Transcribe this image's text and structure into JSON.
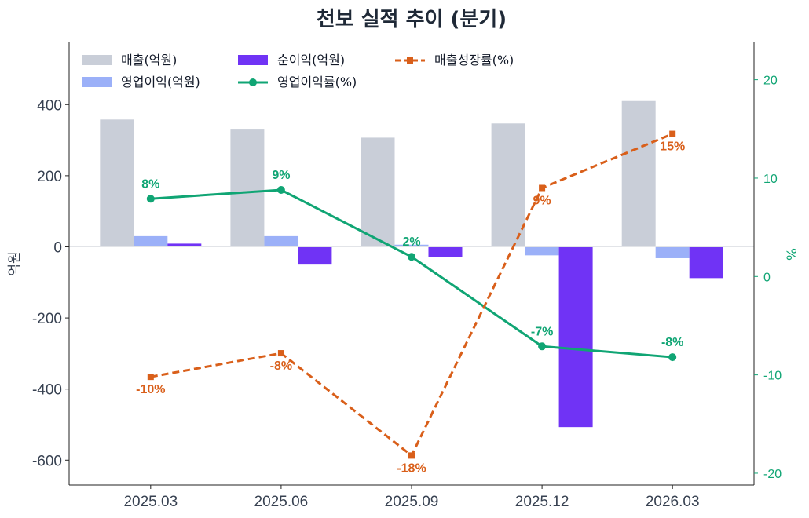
{
  "chart_data": {
    "type": "bar",
    "title": "천보 실적 추이 (분기)",
    "categories": [
      "2025.03",
      "2025.06",
      "2025.09",
      "2025.12",
      "2026.03"
    ],
    "ylabel": "억원",
    "ylabel_right": "%",
    "ylim": [
      -670,
      575
    ],
    "ylim_right": [
      -21.2,
      23.8
    ],
    "yticks": [
      -600,
      -400,
      -200,
      0,
      200,
      400
    ],
    "yticks_right": [
      -20,
      -10,
      0,
      10,
      20
    ],
    "ytick_labels": [
      "-600",
      "-400",
      "-200",
      "0",
      "200",
      "400"
    ],
    "ytick_labels_right": [
      "-20",
      "-10",
      "0",
      "10",
      "20"
    ],
    "legend_position": "top-left",
    "grid": false,
    "series": [
      {
        "name": "매출(억원)",
        "type": "bar",
        "axis": "left",
        "color": "#c9ced8",
        "values": [
          358,
          332,
          307,
          347,
          410
        ]
      },
      {
        "name": "영업이익(억원)",
        "type": "bar",
        "axis": "left",
        "color": "#9bb0f8",
        "values": [
          30,
          30,
          6,
          -24,
          -32
        ]
      },
      {
        "name": "순이익(억원)",
        "type": "bar",
        "axis": "left",
        "color": "#7033f5",
        "values": [
          9,
          -50,
          -28,
          -507,
          -88
        ]
      },
      {
        "name": "영업이익률(%)",
        "type": "line",
        "axis": "right",
        "color": "#10a574",
        "style": "solid",
        "marker": "circle",
        "values": [
          7.9,
          8.8,
          2.0,
          -7.1,
          -8.2
        ],
        "labels": [
          "8%",
          "9%",
          "2%",
          "-7%",
          "-8%"
        ]
      },
      {
        "name": "매출성장률(%)",
        "type": "line",
        "axis": "right",
        "color": "#d95f1a",
        "style": "dashed",
        "marker": "square",
        "values": [
          -10.2,
          -7.8,
          -18.2,
          9.0,
          14.5
        ],
        "labels": [
          "-10%",
          "-8%",
          "-18%",
          "9%",
          "15%"
        ]
      }
    ]
  }
}
